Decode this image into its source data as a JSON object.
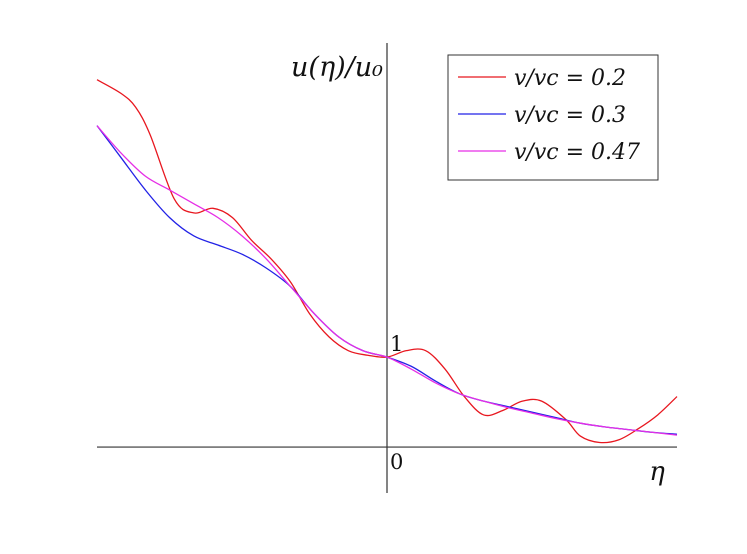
{
  "chart_data": {
    "type": "line",
    "title": "",
    "xlabel": "η",
    "ylabel": "u(η)/u₀",
    "xlim": [
      -3,
      3
    ],
    "ylim": [
      -0.5,
      4.4
    ],
    "grid": false,
    "legend_position": "top-right",
    "annotations": [
      {
        "text": "1",
        "x": 0,
        "y": 1
      },
      {
        "text": "0",
        "x": 0,
        "y": 0
      }
    ],
    "series": [
      {
        "name": "v/vc = 0.2",
        "color": "#e8171f",
        "x": [
          -3.0,
          -2.75,
          -2.6,
          -2.45,
          -2.2,
          -2.0,
          -1.8,
          -1.6,
          -1.4,
          -1.2,
          -1.0,
          -0.8,
          -0.6,
          -0.4,
          -0.2,
          0.0,
          0.2,
          0.4,
          0.6,
          0.8,
          1.0,
          1.2,
          1.4,
          1.6,
          1.85,
          2.0,
          2.2,
          2.4,
          2.6,
          2.8,
          3.0
        ],
        "y": [
          4.0,
          3.85,
          3.7,
          3.4,
          2.7,
          2.55,
          2.6,
          2.5,
          2.25,
          2.05,
          1.8,
          1.45,
          1.2,
          1.05,
          1.0,
          0.98,
          1.05,
          1.05,
          0.85,
          0.55,
          0.35,
          0.4,
          0.5,
          0.5,
          0.3,
          0.12,
          0.05,
          0.08,
          0.2,
          0.35,
          0.55
        ]
      },
      {
        "name": "v/vc = 0.3",
        "color": "#2222e6",
        "x": [
          -3.0,
          -2.75,
          -2.5,
          -2.25,
          -2.0,
          -1.75,
          -1.5,
          -1.25,
          -1.0,
          -0.75,
          -0.5,
          -0.25,
          0.0,
          0.25,
          0.5,
          0.75,
          1.0,
          1.25,
          1.5,
          1.75,
          2.0,
          2.25,
          2.5,
          2.75,
          3.0
        ],
        "y": [
          3.5,
          3.15,
          2.8,
          2.5,
          2.3,
          2.2,
          2.1,
          1.95,
          1.75,
          1.45,
          1.2,
          1.05,
          0.98,
          0.88,
          0.72,
          0.58,
          0.5,
          0.44,
          0.38,
          0.32,
          0.26,
          0.22,
          0.19,
          0.16,
          0.14
        ]
      },
      {
        "name": "v/vc = 0.47",
        "color": "#e62ee6",
        "x": [
          -3.0,
          -2.75,
          -2.5,
          -2.25,
          -2.0,
          -1.75,
          -1.5,
          -1.25,
          -1.0,
          -0.75,
          -0.5,
          -0.25,
          0.0,
          0.25,
          0.5,
          0.75,
          1.0,
          1.25,
          1.5,
          1.75,
          2.0,
          2.25,
          2.5,
          2.75,
          3.0
        ],
        "y": [
          3.5,
          3.2,
          2.95,
          2.8,
          2.65,
          2.5,
          2.3,
          2.05,
          1.75,
          1.45,
          1.2,
          1.05,
          0.98,
          0.85,
          0.7,
          0.58,
          0.5,
          0.43,
          0.37,
          0.31,
          0.26,
          0.22,
          0.19,
          0.16,
          0.13
        ]
      }
    ]
  }
}
